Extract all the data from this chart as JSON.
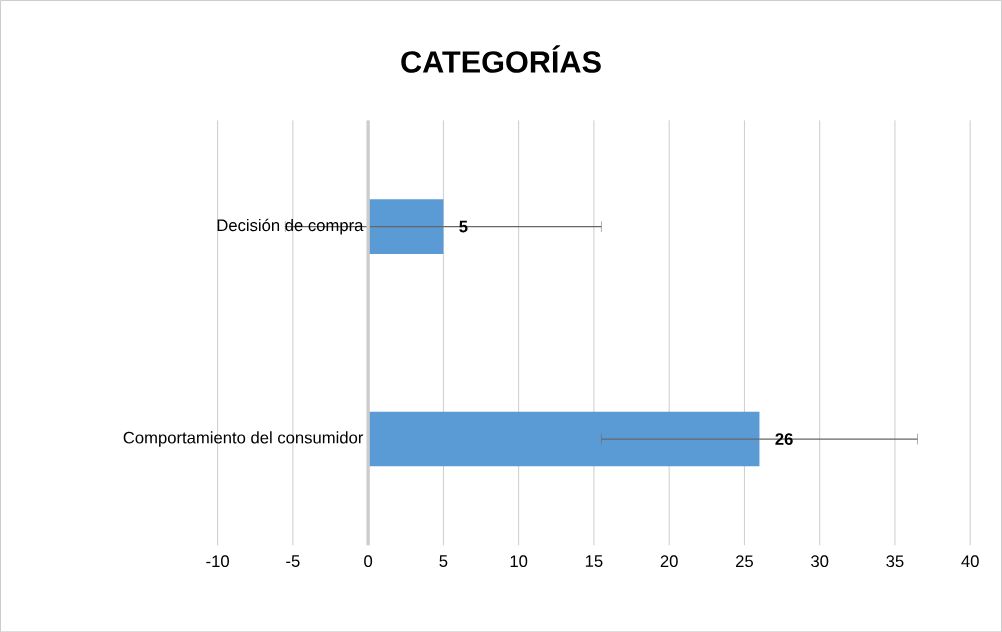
{
  "chart_data": {
    "type": "bar",
    "orientation": "horizontal",
    "title": "CATEGORÍAS",
    "categories": [
      "Decisión de compra",
      "Comportamiento del consumidor"
    ],
    "values": [
      5,
      26
    ],
    "errors": [
      10.5,
      10.5
    ],
    "color": "#5b9bd5",
    "xlim": [
      -10,
      40
    ],
    "xticks": [
      -10,
      -5,
      0,
      5,
      10,
      15,
      20,
      25,
      30,
      35,
      40
    ],
    "grid": "x",
    "data_labels": true
  }
}
